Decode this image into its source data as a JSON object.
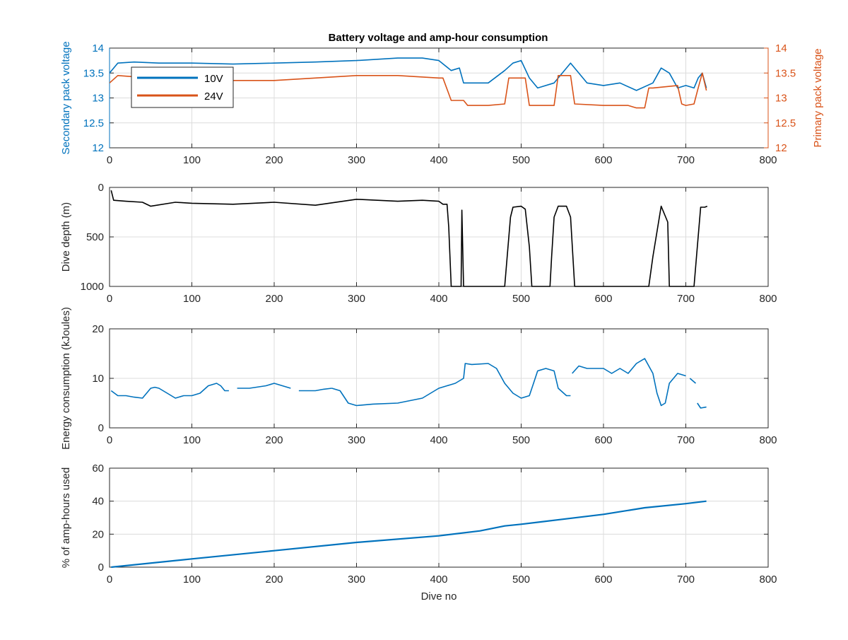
{
  "colors": {
    "series_10v": "#0072bd",
    "series_24v": "#d95319",
    "depth": "#000000",
    "energy": "#0072bd",
    "amphours": "#0072bd",
    "axis": "#262626",
    "grid": "#dcdcdc"
  },
  "chart_data": [
    {
      "type": "line",
      "title": "Battery voltage and amp-hour consumption",
      "xlabel": "",
      "ylabel_left": "Secondary pack voltage",
      "ylabel_right": "Primary pack voltage",
      "xlim": [
        0,
        800
      ],
      "ylim": [
        12,
        14
      ],
      "ylim_right": [
        12,
        14
      ],
      "x_ticks": [
        "0",
        "100",
        "200",
        "300",
        "400",
        "500",
        "600",
        "700",
        "800"
      ],
      "y_ticks_left": [
        "12",
        "12.5",
        "13",
        "13.5",
        "14"
      ],
      "y_ticks_right": [
        "12",
        "12.5",
        "13",
        "13.5",
        "14"
      ],
      "grid": true,
      "legend": "top-left",
      "series": [
        {
          "name": "10V",
          "axis": "left",
          "x": [
            0,
            10,
            30,
            60,
            100,
            150,
            200,
            250,
            300,
            350,
            380,
            400,
            415,
            425,
            430,
            440,
            460,
            480,
            490,
            500,
            510,
            520,
            540,
            560,
            580,
            600,
            620,
            640,
            660,
            670,
            680,
            690,
            700,
            710,
            715,
            720,
            725
          ],
          "y": [
            13.5,
            13.7,
            13.72,
            13.7,
            13.7,
            13.68,
            13.7,
            13.72,
            13.75,
            13.8,
            13.8,
            13.75,
            13.55,
            13.6,
            13.3,
            13.3,
            13.3,
            13.55,
            13.7,
            13.75,
            13.4,
            13.2,
            13.3,
            13.7,
            13.3,
            13.25,
            13.3,
            13.15,
            13.3,
            13.6,
            13.5,
            13.2,
            13.25,
            13.2,
            13.4,
            13.5,
            13.2
          ]
        },
        {
          "name": "24V",
          "axis": "right",
          "x": [
            0,
            10,
            50,
            100,
            150,
            200,
            250,
            300,
            350,
            400,
            405,
            415,
            430,
            435,
            460,
            480,
            485,
            505,
            510,
            540,
            545,
            560,
            565,
            600,
            630,
            640,
            650,
            655,
            660,
            690,
            695,
            700,
            710,
            715,
            720,
            725
          ],
          "y": [
            13.3,
            13.45,
            13.4,
            13.38,
            13.35,
            13.35,
            13.4,
            13.45,
            13.45,
            13.4,
            13.4,
            12.95,
            12.95,
            12.85,
            12.85,
            12.88,
            13.4,
            13.4,
            12.85,
            12.85,
            13.45,
            13.45,
            12.88,
            12.85,
            12.85,
            12.8,
            12.8,
            13.2,
            13.2,
            13.25,
            12.88,
            12.85,
            12.88,
            13.2,
            13.5,
            13.15
          ]
        }
      ]
    },
    {
      "type": "line",
      "title": "",
      "xlabel": "",
      "ylabel": "Dive depth (m)",
      "xlim": [
        0,
        800
      ],
      "ylim": [
        0,
        1000
      ],
      "y_reversed": true,
      "x_ticks": [
        "0",
        "100",
        "200",
        "300",
        "400",
        "500",
        "600",
        "700",
        "800"
      ],
      "y_ticks": [
        "0",
        "500",
        "1000"
      ],
      "grid": true,
      "series": [
        {
          "name": "",
          "x": [
            2,
            5,
            20,
            40,
            50,
            80,
            100,
            150,
            200,
            250,
            300,
            350,
            380,
            400,
            405,
            410,
            412,
            415,
            420,
            425,
            427,
            428,
            430,
            431,
            432,
            440,
            480,
            483,
            487,
            490,
            500,
            505,
            510,
            513,
            515,
            535,
            537,
            540,
            545,
            555,
            560,
            565,
            580,
            600,
            640,
            655,
            660,
            670,
            678,
            680,
            700,
            710,
            713,
            718,
            723,
            726
          ],
          "y": [
            30,
            130,
            140,
            150,
            190,
            150,
            160,
            170,
            150,
            180,
            120,
            140,
            130,
            140,
            170,
            170,
            400,
            1000,
            1000,
            1000,
            1000,
            230,
            1000,
            1000,
            1000,
            1000,
            1000,
            700,
            300,
            200,
            190,
            220,
            600,
            1000,
            1000,
            1000,
            700,
            300,
            190,
            190,
            300,
            1000,
            1000,
            1000,
            1000,
            1000,
            700,
            190,
            350,
            1000,
            1000,
            1000,
            700,
            200,
            200,
            190
          ]
        }
      ]
    },
    {
      "type": "line",
      "title": "",
      "xlabel": "",
      "ylabel": "Energy consumption (kJoules)",
      "xlim": [
        0,
        800
      ],
      "ylim": [
        0,
        20
      ],
      "x_ticks": [
        "0",
        "100",
        "200",
        "300",
        "400",
        "500",
        "600",
        "700",
        "800"
      ],
      "y_ticks": [
        "0",
        "10",
        "20"
      ],
      "grid": true,
      "series": [
        {
          "name": "",
          "segments": [
            {
              "x": [
                2,
                10,
                20,
                30,
                40,
                50,
                55,
                60,
                70,
                80,
                90,
                100,
                110,
                120,
                130,
                135,
                140,
                145
              ],
              "y": [
                7.5,
                6.5,
                6.5,
                6.2,
                6.0,
                8.0,
                8.2,
                8.0,
                7.0,
                6.0,
                6.5,
                6.5,
                7.0,
                8.5,
                9.0,
                8.5,
                7.5,
                7.5
              ]
            },
            {
              "x": [
                155,
                170,
                190,
                200,
                210,
                220
              ],
              "y": [
                8.0,
                8.0,
                8.5,
                9.0,
                8.5,
                8.0
              ]
            },
            {
              "x": [
                230,
                250,
                260,
                270
              ],
              "y": [
                7.5,
                7.5,
                7.8,
                8.0
              ]
            },
            {
              "x": [
                270,
                280,
                290,
                300,
                320,
                350,
                380,
                400,
                410,
                420,
                430,
                432,
                440,
                460,
                470,
                480,
                490,
                500,
                510,
                515,
                520,
                530,
                540,
                545,
                555,
                560
              ],
              "y": [
                8.0,
                7.5,
                5.0,
                4.5,
                4.8,
                5.0,
                6.0,
                8.0,
                8.5,
                9.0,
                10.0,
                13.0,
                12.8,
                13.0,
                12.0,
                9.0,
                7.0,
                6.0,
                6.5,
                9.0,
                11.5,
                12.0,
                11.5,
                8.0,
                6.5,
                6.5
              ]
            },
            {
              "x": [
                562,
                570,
                580,
                600,
                610,
                620,
                630,
                640,
                650,
                655,
                660,
                665,
                670,
                675,
                680,
                690,
                700
              ],
              "y": [
                11.0,
                12.5,
                12.0,
                12.0,
                11.0,
                12.0,
                11.0,
                13.0,
                14.0,
                12.5,
                11.0,
                7.0,
                4.5,
                5.0,
                9.0,
                11.0,
                10.5
              ]
            },
            {
              "x": [
                705,
                712
              ],
              "y": [
                10.0,
                9.0
              ]
            },
            {
              "x": [
                714,
                718,
                725
              ],
              "y": [
                5.0,
                4.0,
                4.2
              ]
            }
          ]
        }
      ]
    },
    {
      "type": "line",
      "title": "",
      "xlabel": "Dive no",
      "ylabel": "% of amp-hours used",
      "xlim": [
        0,
        800
      ],
      "ylim": [
        0,
        60
      ],
      "x_ticks": [
        "0",
        "100",
        "200",
        "300",
        "400",
        "500",
        "600",
        "700",
        "800"
      ],
      "y_ticks": [
        "0",
        "20",
        "40",
        "60"
      ],
      "grid": true,
      "series": [
        {
          "name": "",
          "x": [
            2,
            100,
            200,
            300,
            400,
            450,
            480,
            500,
            550,
            600,
            650,
            700,
            725
          ],
          "y": [
            0,
            5,
            10,
            15,
            19,
            22,
            25,
            26,
            29,
            32,
            36,
            38.5,
            40
          ]
        }
      ]
    }
  ]
}
